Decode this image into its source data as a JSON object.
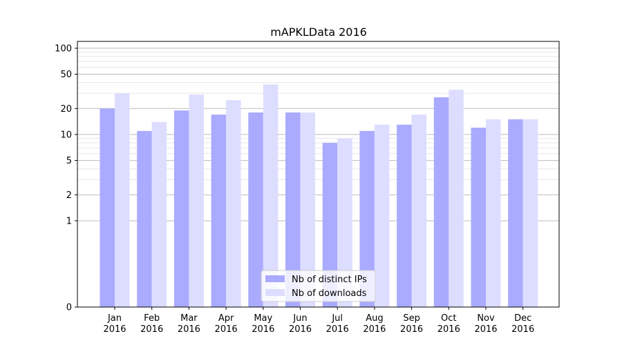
{
  "chart_data": {
    "type": "bar",
    "title": "mAPKLData 2016",
    "xlabel": "",
    "ylabel": "",
    "yscale": "symlog",
    "ylim": [
      0,
      120
    ],
    "yticks": [
      0,
      1,
      2,
      5,
      10,
      20,
      50,
      100
    ],
    "ytick_labels": [
      "0",
      "1",
      "2",
      "5",
      "10",
      "20",
      "50",
      "100"
    ],
    "categories": [
      "Jan\n2016",
      "Feb\n2016",
      "Mar\n2016",
      "Apr\n2016",
      "May\n2016",
      "Jun\n2016",
      "Jul\n2016",
      "Aug\n2016",
      "Sep\n2016",
      "Oct\n2016",
      "Nov\n2016",
      "Dec\n2016"
    ],
    "series": [
      {
        "name": "Nb of distinct IPs",
        "color": "#aaaaff",
        "values": [
          20,
          11,
          19,
          17,
          18,
          18,
          8,
          11,
          13,
          27,
          12,
          15
        ]
      },
      {
        "name": "Nb of downloads",
        "color": "#ddddff",
        "values": [
          30,
          14,
          29,
          25,
          38,
          18,
          9,
          13,
          17,
          33,
          15,
          15
        ]
      }
    ],
    "grid": true,
    "legend_position": "bottom-center"
  }
}
